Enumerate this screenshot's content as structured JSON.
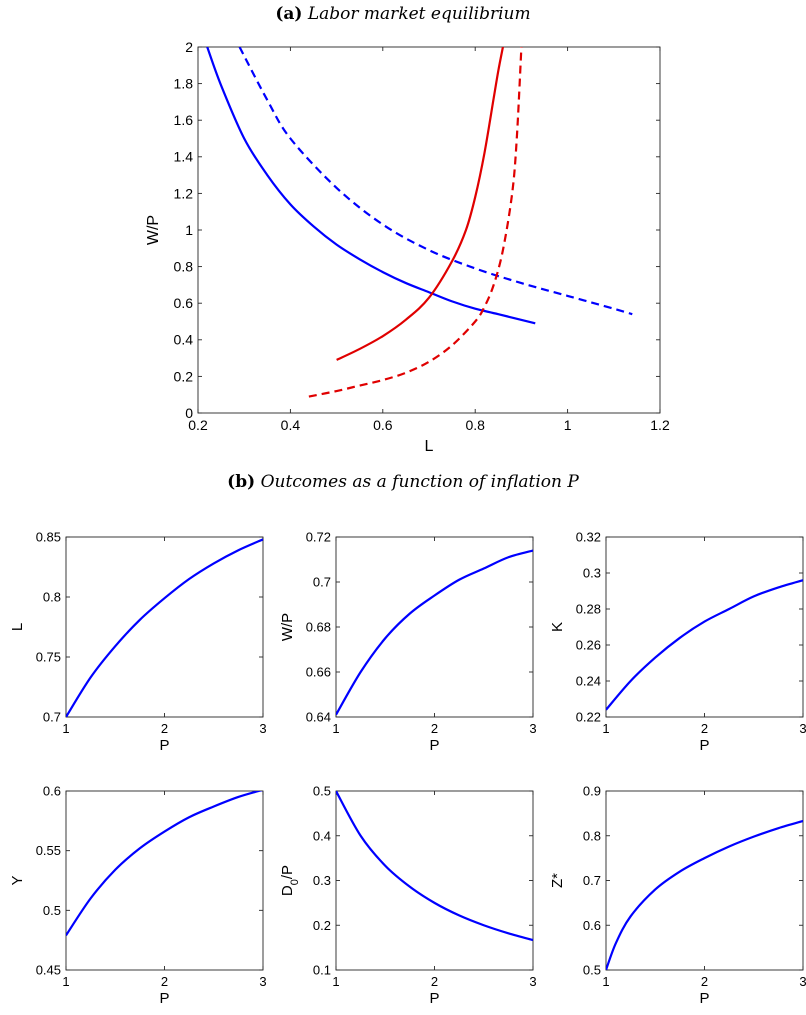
{
  "titles": {
    "a_label": "(a)",
    "a_text": "Labor market equilibrium",
    "b_label": "(b)",
    "b_text": "Outcomes as a function of inflation P"
  },
  "colors": {
    "blue": "#0000ff",
    "red": "#e00000"
  },
  "chart_data": [
    {
      "id": "a",
      "type": "line",
      "xlabel": "L",
      "ylabel": "W/P",
      "xlim": [
        0.2,
        1.2
      ],
      "ylim": [
        0,
        2
      ],
      "xticks": [
        "0.2",
        "0.4",
        "0.6",
        "0.8",
        "1",
        "1.2"
      ],
      "yticks": [
        "0",
        "0.2",
        "0.4",
        "0.6",
        "0.8",
        "1",
        "1.2",
        "1.4",
        "1.6",
        "1.8",
        "2"
      ],
      "series": [
        {
          "color": "blue",
          "style": "solid",
          "x": [
            0.22,
            0.25,
            0.3,
            0.35,
            0.4,
            0.45,
            0.5,
            0.55,
            0.6,
            0.65,
            0.7,
            0.75,
            0.8,
            0.85,
            0.93
          ],
          "y": [
            2.0,
            1.79,
            1.5,
            1.3,
            1.14,
            1.02,
            0.92,
            0.84,
            0.77,
            0.71,
            0.66,
            0.61,
            0.57,
            0.54,
            0.49
          ]
        },
        {
          "color": "blue",
          "style": "dashed",
          "x": [
            0.29,
            0.35,
            0.4,
            0.5,
            0.6,
            0.7,
            0.8,
            0.9,
            1.0,
            1.1,
            1.14
          ],
          "y": [
            2.0,
            1.71,
            1.5,
            1.23,
            1.03,
            0.89,
            0.79,
            0.71,
            0.64,
            0.57,
            0.54
          ]
        },
        {
          "color": "red",
          "style": "solid",
          "x": [
            0.5,
            0.55,
            0.6,
            0.65,
            0.7,
            0.75,
            0.78,
            0.8,
            0.82,
            0.84,
            0.85,
            0.86
          ],
          "y": [
            0.29,
            0.35,
            0.42,
            0.51,
            0.63,
            0.83,
            1.0,
            1.18,
            1.42,
            1.72,
            1.87,
            2.0
          ]
        },
        {
          "color": "red",
          "style": "dashed",
          "x": [
            0.44,
            0.5,
            0.55,
            0.6,
            0.65,
            0.7,
            0.75,
            0.8,
            0.82,
            0.84,
            0.86,
            0.88,
            0.89,
            0.9
          ],
          "y": [
            0.09,
            0.12,
            0.15,
            0.18,
            0.22,
            0.28,
            0.37,
            0.5,
            0.58,
            0.7,
            0.89,
            1.2,
            1.5,
            2.0
          ]
        }
      ]
    },
    {
      "id": "b1",
      "type": "line",
      "xlabel": "P",
      "ylabel": "L",
      "xlim": [
        1,
        3
      ],
      "ylim": [
        0.7,
        0.85
      ],
      "xticks": [
        "1",
        "2",
        "3"
      ],
      "yticks": [
        "0.7",
        "0.75",
        "0.8",
        "0.85"
      ],
      "series": [
        {
          "color": "blue",
          "style": "solid",
          "x": [
            1,
            1.25,
            1.5,
            1.75,
            2,
            2.25,
            2.5,
            2.75,
            3
          ],
          "y": [
            0.7,
            0.733,
            0.759,
            0.781,
            0.799,
            0.815,
            0.828,
            0.839,
            0.848
          ]
        }
      ]
    },
    {
      "id": "b2",
      "type": "line",
      "xlabel": "P",
      "ylabel": "W/P",
      "xlim": [
        1,
        3
      ],
      "ylim": [
        0.64,
        0.72
      ],
      "xticks": [
        "1",
        "2",
        "3"
      ],
      "yticks": [
        "0.64",
        "0.66",
        "0.68",
        "0.7",
        "0.72"
      ],
      "series": [
        {
          "color": "blue",
          "style": "solid",
          "x": [
            1,
            1.25,
            1.5,
            1.75,
            2,
            2.25,
            2.5,
            2.75,
            3
          ],
          "y": [
            0.641,
            0.66,
            0.675,
            0.686,
            0.694,
            0.701,
            0.706,
            0.711,
            0.714
          ]
        }
      ]
    },
    {
      "id": "b3",
      "type": "line",
      "xlabel": "P",
      "ylabel": "K",
      "xlim": [
        1,
        3
      ],
      "ylim": [
        0.22,
        0.32
      ],
      "xticks": [
        "1",
        "2",
        "3"
      ],
      "yticks": [
        "0.22",
        "0.24",
        "0.26",
        "0.28",
        "0.3",
        "0.32"
      ],
      "series": [
        {
          "color": "blue",
          "style": "solid",
          "x": [
            1,
            1.25,
            1.5,
            1.75,
            2,
            2.25,
            2.5,
            2.75,
            3
          ],
          "y": [
            0.224,
            0.24,
            0.253,
            0.264,
            0.273,
            0.28,
            0.287,
            0.292,
            0.296
          ]
        }
      ]
    },
    {
      "id": "b4",
      "type": "line",
      "xlabel": "P",
      "ylabel": "Y",
      "xlim": [
        1,
        3
      ],
      "ylim": [
        0.45,
        0.6
      ],
      "xticks": [
        "1",
        "2",
        "3"
      ],
      "yticks": [
        "0.45",
        "0.5",
        "0.55",
        "0.6"
      ],
      "series": [
        {
          "color": "blue",
          "style": "solid",
          "x": [
            1,
            1.25,
            1.5,
            1.75,
            2,
            2.25,
            2.5,
            2.75,
            3
          ],
          "y": [
            0.479,
            0.51,
            0.534,
            0.552,
            0.566,
            0.578,
            0.587,
            0.595,
            0.601
          ]
        }
      ]
    },
    {
      "id": "b5",
      "type": "line",
      "xlabel": "P",
      "ylabel": "D0/P",
      "ylabel_main": "D",
      "ylabel_sub": "0",
      "ylabel_rest": "/P",
      "xlim": [
        1,
        3
      ],
      "ylim": [
        0.1,
        0.5
      ],
      "xticks": [
        "1",
        "2",
        "3"
      ],
      "yticks": [
        "0.1",
        "0.2",
        "0.3",
        "0.4",
        "0.5"
      ],
      "series": [
        {
          "color": "blue",
          "style": "solid",
          "x": [
            1,
            1.25,
            1.5,
            1.75,
            2,
            2.25,
            2.5,
            2.75,
            3
          ],
          "y": [
            0.5,
            0.4,
            0.333,
            0.286,
            0.25,
            0.222,
            0.2,
            0.182,
            0.167
          ]
        }
      ]
    },
    {
      "id": "b6",
      "type": "line",
      "xlabel": "P",
      "ylabel": "Z*",
      "xlim": [
        1,
        3
      ],
      "ylim": [
        0.5,
        0.9
      ],
      "xticks": [
        "1",
        "2",
        "3"
      ],
      "yticks": [
        "0.5",
        "0.6",
        "0.7",
        "0.8",
        "0.9"
      ],
      "series": [
        {
          "color": "blue",
          "style": "solid",
          "x": [
            1,
            1.1,
            1.25,
            1.5,
            1.75,
            2,
            2.25,
            2.5,
            2.75,
            3
          ],
          "y": [
            0.5,
            0.56,
            0.62,
            0.68,
            0.72,
            0.75,
            0.776,
            0.798,
            0.817,
            0.833
          ]
        }
      ]
    }
  ]
}
